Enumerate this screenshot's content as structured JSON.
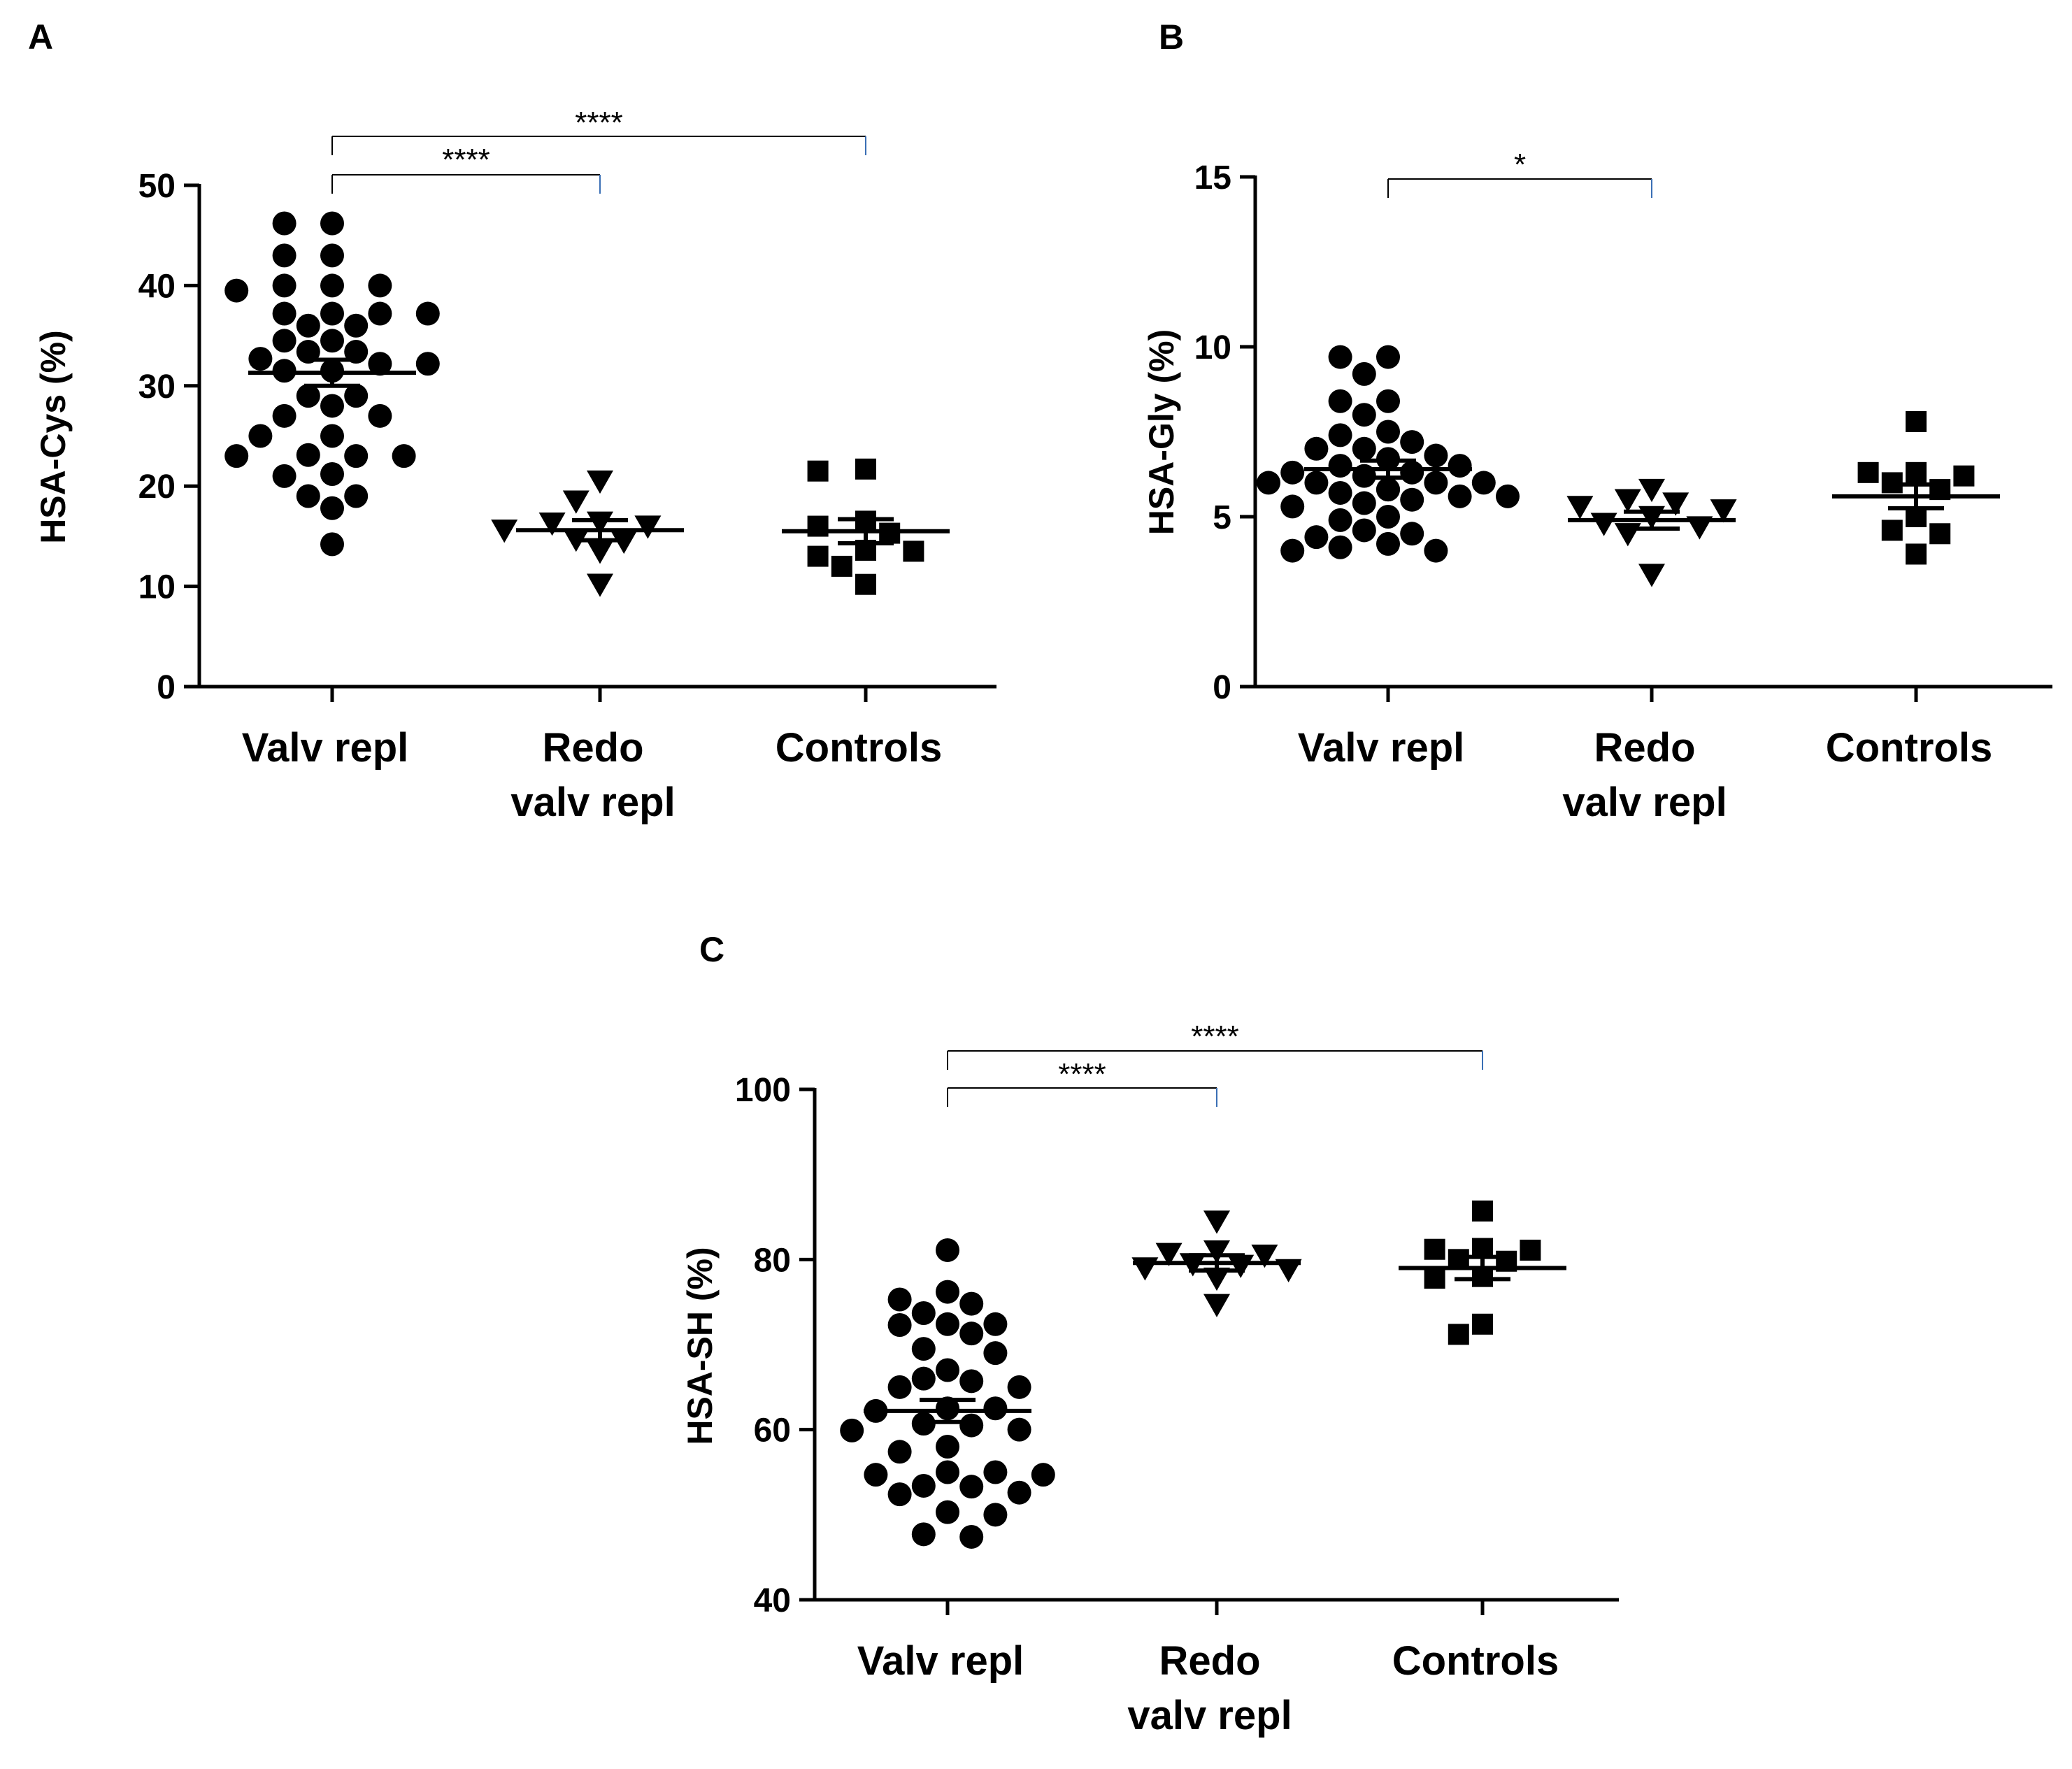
{
  "chart_data": [
    {
      "panel": "A",
      "type": "scatter",
      "ylabel": "HSA-Cys (%)",
      "ylim": [
        0,
        50
      ],
      "yticks": [
        "0",
        "10",
        "20",
        "30",
        "40",
        "50"
      ],
      "categories": [
        {
          "lines": [
            "Valv repl"
          ]
        },
        {
          "lines": [
            "Redo",
            "valv repl"
          ]
        },
        {
          "lines": [
            "Controls"
          ]
        }
      ],
      "groups": [
        {
          "marker": "circle",
          "mean": 31.3,
          "sem": 1.3,
          "values": [
            46.2,
            46.2,
            43.0,
            43.0,
            40.0,
            40.0,
            40.0,
            39.5,
            37.2,
            37.2,
            37.2,
            37.2,
            36.0,
            36.0,
            34.5,
            34.5,
            33.4,
            33.4,
            32.7,
            32.2,
            32.2,
            31.5,
            31.5,
            29.0,
            29.0,
            28.0,
            27.0,
            27.0,
            25.0,
            25.0,
            23.1,
            23.0,
            23.0,
            23.0,
            21.2,
            21.0,
            19.0,
            19.0,
            17.8,
            14.2
          ]
        },
        {
          "marker": "triangle-down",
          "mean": 15.6,
          "sem": 1.0,
          "values": [
            20.5,
            18.5,
            16.4,
            16.3,
            16.0,
            15.6,
            14.7,
            14.5,
            13.5,
            10.2
          ]
        },
        {
          "marker": "square",
          "mean": 15.5,
          "sem": 1.2,
          "values": [
            21.7,
            21.5,
            16.5,
            16.0,
            15.3,
            13.5,
            13.6,
            13.0,
            12.0,
            10.2
          ]
        }
      ],
      "brackets": [
        {
          "from": 0,
          "to": 2,
          "label": "****"
        },
        {
          "from": 0,
          "to": 1,
          "label": "****"
        }
      ]
    },
    {
      "panel": "B",
      "type": "scatter",
      "ylabel": "HSA-Gly (%)",
      "ylim": [
        0,
        15
      ],
      "yticks": [
        "0",
        "5",
        "10",
        "15"
      ],
      "categories": [
        {
          "lines": [
            "Valv repl"
          ]
        },
        {
          "lines": [
            "Redo",
            "valv repl"
          ]
        },
        {
          "lines": [
            "Controls"
          ]
        }
      ],
      "groups": [
        {
          "marker": "circle",
          "mean": 6.4,
          "sem": 0.25,
          "values": [
            9.7,
            9.7,
            9.2,
            8.4,
            8.4,
            8.0,
            7.5,
            7.4,
            7.2,
            7.0,
            7.0,
            6.8,
            6.7,
            6.5,
            6.5,
            6.3,
            6.3,
            6.2,
            6.0,
            6.0,
            6.0,
            6.0,
            5.8,
            5.8,
            5.7,
            5.6,
            5.6,
            5.5,
            5.4,
            5.3,
            5.0,
            4.9,
            4.6,
            4.5,
            4.4,
            4.2,
            4.1,
            4.0,
            4.0
          ]
        },
        {
          "marker": "triangle-down",
          "mean": 4.9,
          "sem": 0.25,
          "values": [
            5.8,
            5.5,
            5.4,
            5.3,
            5.2,
            5.0,
            4.8,
            4.7,
            4.5,
            3.3
          ]
        },
        {
          "marker": "square",
          "mean": 5.6,
          "sem": 0.35,
          "values": [
            7.8,
            6.3,
            6.3,
            6.2,
            6.0,
            5.8,
            5.0,
            4.6,
            4.5,
            3.9
          ]
        }
      ],
      "brackets": [
        {
          "from": 0,
          "to": 1,
          "label": "*"
        }
      ]
    },
    {
      "panel": "C",
      "type": "scatter",
      "ylabel": "HSA-SH (%)",
      "ylim": [
        40,
        100
      ],
      "yticks": [
        "40",
        "60",
        "80",
        "100"
      ],
      "categories": [
        {
          "lines": [
            "Valv repl"
          ]
        },
        {
          "lines": [
            "Redo",
            "valv repl"
          ]
        },
        {
          "lines": [
            "Controls"
          ]
        }
      ],
      "groups": [
        {
          "marker": "circle",
          "mean": 62.2,
          "sem": 1.3,
          "values": [
            81.1,
            76.2,
            75.3,
            74.8,
            73.7,
            72.4,
            72.4,
            72.3,
            71.3,
            69.5,
            69.0,
            67.0,
            66.0,
            65.7,
            65.0,
            65.0,
            62.5,
            62.5,
            62.2,
            60.7,
            60.5,
            60.0,
            59.9,
            58.0,
            57.4,
            55.0,
            55.0,
            54.7,
            54.7,
            53.4,
            53.3,
            52.6,
            52.4,
            50.3,
            50.0,
            47.7,
            47.4
          ]
        },
        {
          "marker": "triangle-down",
          "mean": 79.6,
          "sem": 0.9,
          "values": [
            84.5,
            81.0,
            80.7,
            80.5,
            79.5,
            79.3,
            79.0,
            78.8,
            77.8,
            74.7
          ]
        },
        {
          "marker": "square",
          "mean": 79.0,
          "sem": 1.3,
          "values": [
            85.7,
            81.3,
            81.2,
            81.1,
            80.0,
            79.8,
            78.0,
            77.8,
            72.4,
            71.2
          ]
        }
      ],
      "brackets": [
        {
          "from": 0,
          "to": 2,
          "label": "****"
        },
        {
          "from": 0,
          "to": 1,
          "label": "****"
        }
      ]
    }
  ]
}
